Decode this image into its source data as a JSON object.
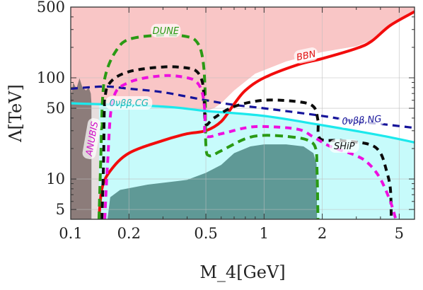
{
  "chart_data": {
    "type": "area",
    "title": "",
    "xlabel": "M_4[GeV]",
    "ylabel": "Λ[TeV]",
    "x_scale": "log",
    "y_scale": "log",
    "xlim": [
      0.1,
      6.0
    ],
    "ylim": [
      4.0,
      500
    ],
    "grid": true,
    "x_ticks": [
      {
        "value": 0.1,
        "label": "0.1"
      },
      {
        "value": 0.2,
        "label": "0.2"
      },
      {
        "value": 0.5,
        "label": "0.5"
      },
      {
        "value": 1,
        "label": "1"
      },
      {
        "value": 2,
        "label": "2"
      },
      {
        "value": 5,
        "label": "5"
      }
    ],
    "y_ticks": [
      {
        "value": 5,
        "label": "5"
      },
      {
        "value": 10,
        "label": "10"
      },
      {
        "value": 50,
        "label": "50"
      },
      {
        "value": 100,
        "label": "100"
      },
      {
        "value": 500,
        "label": "500"
      }
    ],
    "regions": [
      {
        "id": "bbn",
        "color": "#f9c6c6",
        "points": [
          [
            0.1,
            500
          ],
          [
            0.1,
            56
          ],
          [
            0.3,
            52
          ],
          [
            0.5,
            47
          ],
          [
            0.55,
            50
          ],
          [
            0.6,
            56
          ],
          [
            0.7,
            75
          ],
          [
            0.9,
            110
          ],
          [
            1.3,
            145
          ],
          [
            2.0,
            180
          ],
          [
            3.0,
            205
          ],
          [
            3.5,
            230
          ],
          [
            4.5,
            330
          ],
          [
            6.0,
            450
          ],
          [
            6.0,
            500
          ]
        ]
      },
      {
        "id": "cyan-band",
        "color": "#c7fbfb",
        "points": [
          [
            0.1,
            56
          ],
          [
            0.3,
            52
          ],
          [
            0.5,
            47
          ],
          [
            1.0,
            42
          ],
          [
            2.0,
            34
          ],
          [
            4.0,
            27
          ],
          [
            6.0,
            23
          ],
          [
            6.0,
            4.0
          ],
          [
            0.1,
            4.0
          ]
        ]
      },
      {
        "id": "grey-left",
        "color": "#e6dede",
        "points": [
          [
            0.128,
            56
          ],
          [
            0.14,
            56
          ],
          [
            0.14,
            4.0
          ],
          [
            0.128,
            4.0
          ]
        ]
      },
      {
        "id": "brown-left",
        "color": "#8c7c7a",
        "points": [
          [
            0.1,
            4.0
          ],
          [
            0.1,
            62
          ],
          [
            0.103,
            90
          ],
          [
            0.107,
            78
          ],
          [
            0.111,
            99
          ],
          [
            0.115,
            80
          ],
          [
            0.12,
            75
          ],
          [
            0.124,
            80
          ],
          [
            0.127,
            70
          ],
          [
            0.128,
            56
          ],
          [
            0.128,
            4.0
          ]
        ]
      },
      {
        "id": "dark-teal",
        "color": "#5f9996",
        "points": [
          [
            0.155,
            4.0
          ],
          [
            0.16,
            6.6
          ],
          [
            0.18,
            7.8
          ],
          [
            0.25,
            8.8
          ],
          [
            0.4,
            9.8
          ],
          [
            0.5,
            11.5
          ],
          [
            0.6,
            13.8
          ],
          [
            0.7,
            18
          ],
          [
            0.85,
            21
          ],
          [
            1.0,
            22
          ],
          [
            1.3,
            22
          ],
          [
            1.6,
            21
          ],
          [
            1.8,
            18
          ],
          [
            1.87,
            14
          ],
          [
            1.88,
            4.0
          ]
        ]
      }
    ],
    "series": [
      {
        "id": "bbn-line",
        "color": "#f20c0c",
        "dash": "",
        "width": 4,
        "points": [
          [
            0.14,
            4.0
          ],
          [
            0.145,
            8
          ],
          [
            0.16,
            12
          ],
          [
            0.2,
            18
          ],
          [
            0.3,
            24
          ],
          [
            0.4,
            28
          ],
          [
            0.5,
            30
          ],
          [
            0.6,
            37
          ],
          [
            0.7,
            55
          ],
          [
            0.8,
            75
          ],
          [
            1.0,
            100
          ],
          [
            1.5,
            135
          ],
          [
            2.0,
            155
          ],
          [
            3.0,
            195
          ],
          [
            3.6,
            230
          ],
          [
            4.5,
            330
          ],
          [
            6.0,
            450
          ]
        ]
      },
      {
        "id": "nubb-ng",
        "color": "#16149a",
        "dash": "10,7",
        "width": 3.2,
        "points": [
          [
            0.1,
            78
          ],
          [
            0.15,
            82
          ],
          [
            0.2,
            78
          ],
          [
            0.3,
            72
          ],
          [
            0.5,
            60
          ],
          [
            0.7,
            54
          ],
          [
            1.0,
            50
          ],
          [
            2.0,
            42
          ],
          [
            3.0,
            37
          ],
          [
            4.0,
            35
          ],
          [
            6.0,
            32
          ]
        ]
      },
      {
        "id": "nubb-cg",
        "color": "#1ce8ec",
        "dash": "",
        "width": 3.2,
        "points": [
          [
            0.1,
            56
          ],
          [
            0.3,
            52
          ],
          [
            0.5,
            47
          ],
          [
            1.0,
            42
          ],
          [
            2.0,
            34
          ],
          [
            4.0,
            27
          ],
          [
            6.0,
            23
          ]
        ]
      },
      {
        "id": "dune",
        "color": "#2a9a14",
        "dash": "11,7",
        "width": 4,
        "points": [
          [
            0.14,
            4.0
          ],
          [
            0.143,
            16
          ],
          [
            0.146,
            60
          ],
          [
            0.152,
            110
          ],
          [
            0.17,
            180
          ],
          [
            0.2,
            240
          ],
          [
            0.3,
            265
          ],
          [
            0.4,
            255
          ],
          [
            0.45,
            225
          ],
          [
            0.48,
            160
          ],
          [
            0.495,
            80
          ],
          [
            0.5,
            22
          ],
          [
            0.52,
            17
          ],
          [
            0.6,
            19
          ],
          [
            0.8,
            25
          ],
          [
            1.0,
            27
          ],
          [
            1.4,
            26
          ],
          [
            1.7,
            24
          ],
          [
            1.85,
            20
          ],
          [
            1.88,
            12
          ],
          [
            1.9,
            4.0
          ]
        ]
      },
      {
        "id": "black-inner",
        "color": "#0c0c0c",
        "dash": "9,7",
        "width": 4,
        "points": [
          [
            0.145,
            4.0
          ],
          [
            0.148,
            16
          ],
          [
            0.15,
            58
          ],
          [
            0.16,
            90
          ],
          [
            0.2,
            115
          ],
          [
            0.3,
            128
          ],
          [
            0.4,
            125
          ],
          [
            0.45,
            115
          ],
          [
            0.48,
            90
          ],
          [
            0.49,
            60
          ],
          [
            0.5,
            35
          ],
          [
            0.55,
            40
          ],
          [
            0.7,
            52
          ],
          [
            1.0,
            60
          ],
          [
            1.5,
            58
          ],
          [
            1.8,
            52
          ],
          [
            1.9,
            38
          ],
          [
            1.95,
            25
          ],
          [
            2.5,
            24
          ],
          [
            3.5,
            22
          ],
          [
            4.0,
            18
          ],
          [
            4.3,
            12
          ],
          [
            4.5,
            8
          ],
          [
            4.55,
            4.0
          ]
        ]
      },
      {
        "id": "magenta",
        "color": "#ee0fdf",
        "dash": "9,7",
        "width": 4,
        "points": [
          [
            0.15,
            4.0
          ],
          [
            0.155,
            14
          ],
          [
            0.165,
            60
          ],
          [
            0.2,
            90
          ],
          [
            0.3,
            105
          ],
          [
            0.4,
            100
          ],
          [
            0.45,
            90
          ],
          [
            0.48,
            70
          ],
          [
            0.495,
            45
          ],
          [
            0.5,
            27
          ],
          [
            0.6,
            28
          ],
          [
            0.8,
            32
          ],
          [
            1.0,
            33
          ],
          [
            1.5,
            31
          ],
          [
            1.8,
            26
          ],
          [
            2.2,
            21
          ],
          [
            3.0,
            17
          ],
          [
            3.5,
            14
          ],
          [
            4.0,
            10
          ],
          [
            4.5,
            6
          ],
          [
            4.8,
            4.0
          ]
        ]
      }
    ],
    "annotations": [
      {
        "text": "DUNE",
        "x": 0.31,
        "y": 290,
        "color": "#2a9a14",
        "rotate": 0
      },
      {
        "text": "BBN",
        "x": 1.65,
        "y": 165,
        "color": "#e01010",
        "rotate": -12
      },
      {
        "text": "0νββ,CG",
        "x": 0.2,
        "y": 56,
        "color": "#16b6b6",
        "rotate": 0
      },
      {
        "text": "0νββ,NG",
        "x": 3.2,
        "y": 38,
        "color": "#16149a",
        "rotate": -4
      },
      {
        "text": "ANUBIS",
        "x": 0.129,
        "y": 25,
        "color": "#d010c8",
        "rotate": -80
      },
      {
        "text": "SHiP",
        "x": 2.6,
        "y": 21,
        "color": "#111111",
        "rotate": 0
      }
    ]
  }
}
